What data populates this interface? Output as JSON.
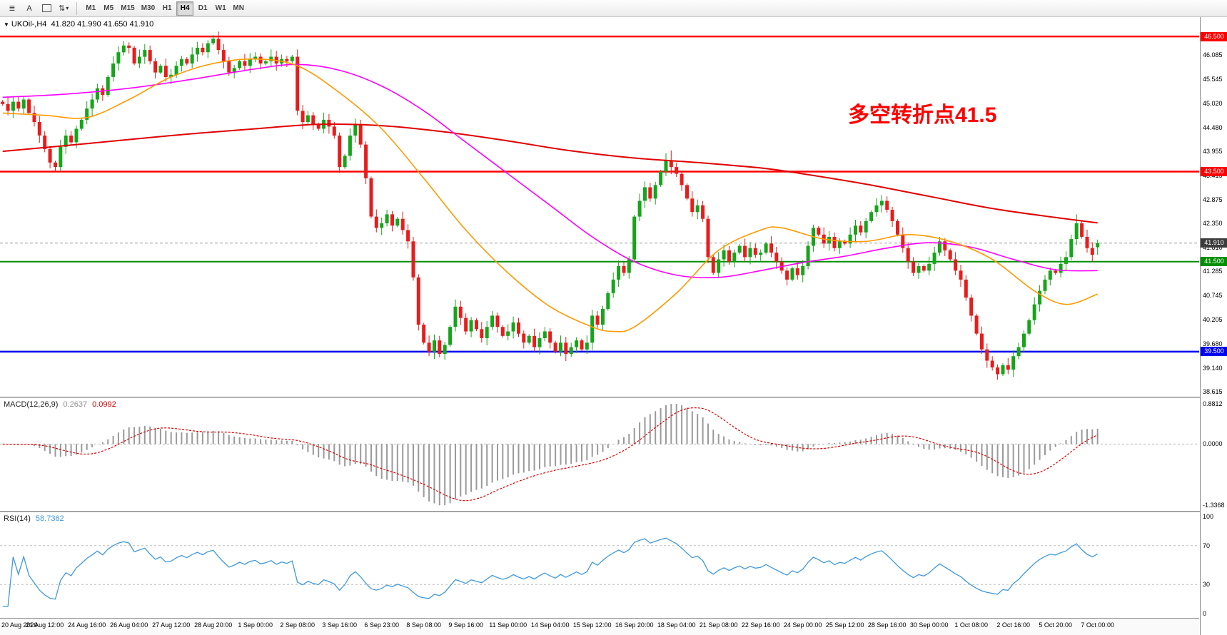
{
  "toolbar": {
    "tool_icons": [
      {
        "name": "charts-tile-icon",
        "glyph": "≣"
      },
      {
        "name": "text-label-tool-icon",
        "glyph": "A"
      },
      {
        "name": "frame-tool-icon",
        "glyph": "rect"
      },
      {
        "name": "arrows-cycle-icon",
        "glyph": "⇅",
        "caret": "▾"
      }
    ],
    "timeframes": [
      "M1",
      "M5",
      "M15",
      "M30",
      "H1",
      "H4",
      "D1",
      "W1",
      "MN"
    ],
    "active_timeframe": "H4"
  },
  "chart": {
    "collapse_arrow": "▼",
    "symbol_period": "UKOil-,H4",
    "ohlc_text": "41.820 41.990 41.650 41.910",
    "annotation": "多空转折点41.5"
  },
  "chart_data": {
    "type": "candlestick",
    "symbol": "UKOil-",
    "timeframe": "H4",
    "last_bar": {
      "open": 41.82,
      "high": 41.99,
      "low": 41.65,
      "close": 41.91
    },
    "price_axis": {
      "max": 46.93,
      "min": 38.5,
      "ticks": [
        46.085,
        45.545,
        45.02,
        44.48,
        43.955,
        43.415,
        42.875,
        42.35,
        41.81,
        41.285,
        40.745,
        40.205,
        39.68,
        39.14,
        38.615
      ]
    },
    "levels": [
      {
        "label": "46.500",
        "price": 46.5,
        "color": "#ff0000",
        "width": 2.5
      },
      {
        "label": "43.500",
        "price": 43.5,
        "color": "#ff0000",
        "width": 2.5
      },
      {
        "label": "41.500",
        "price": 41.5,
        "color": "#008f00",
        "width": 2
      },
      {
        "label": "39.500",
        "price": 39.5,
        "color": "#0000ee",
        "width": 2.5
      }
    ],
    "bid": {
      "label": "41.910",
      "price": 41.91
    },
    "closes": [
      45.0,
      44.85,
      45.05,
      44.9,
      45.1,
      44.8,
      44.6,
      44.3,
      44.0,
      43.7,
      43.6,
      44.05,
      44.3,
      44.15,
      44.45,
      44.65,
      44.9,
      45.1,
      45.35,
      45.2,
      45.6,
      45.9,
      46.15,
      46.3,
      46.25,
      45.9,
      46.05,
      46.2,
      45.95,
      45.7,
      45.85,
      45.6,
      45.65,
      45.85,
      46.0,
      45.9,
      46.1,
      46.25,
      46.15,
      46.35,
      46.45,
      46.2,
      45.95,
      45.7,
      45.8,
      45.95,
      45.85,
      46.0,
      46.05,
      45.9,
      45.95,
      46.05,
      45.9,
      46.0,
      45.95,
      46.05,
      44.85,
      44.6,
      44.75,
      44.55,
      44.45,
      44.65,
      44.5,
      44.3,
      43.6,
      43.85,
      44.3,
      44.55,
      44.1,
      43.35,
      42.5,
      42.25,
      42.35,
      42.55,
      42.3,
      42.45,
      42.2,
      41.95,
      41.15,
      40.1,
      39.7,
      39.5,
      39.75,
      39.45,
      39.65,
      40.05,
      40.5,
      40.25,
      39.95,
      40.2,
      40.0,
      39.8,
      40.05,
      40.3,
      40.05,
      39.85,
      39.95,
      40.15,
      39.9,
      39.7,
      39.85,
      39.6,
      39.8,
      39.95,
      39.7,
      39.5,
      39.7,
      39.45,
      39.6,
      39.75,
      39.55,
      39.7,
      40.3,
      40.1,
      40.45,
      40.8,
      41.1,
      41.4,
      41.25,
      41.55,
      42.5,
      42.85,
      43.15,
      42.9,
      43.2,
      43.5,
      43.75,
      43.6,
      43.45,
      43.2,
      42.9,
      42.6,
      42.75,
      42.45,
      41.6,
      41.25,
      41.55,
      41.75,
      41.5,
      41.7,
      41.85,
      41.6,
      41.8,
      41.65,
      41.7,
      41.9,
      41.7,
      41.5,
      41.3,
      41.1,
      41.35,
      41.2,
      41.4,
      41.85,
      42.25,
      42.1,
      41.9,
      42.05,
      41.8,
      41.95,
      41.9,
      42.1,
      42.3,
      42.15,
      42.4,
      42.6,
      42.75,
      42.85,
      42.65,
      42.4,
      42.1,
      41.8,
      41.5,
      41.25,
      41.4,
      41.3,
      41.45,
      41.7,
      41.95,
      41.75,
      41.55,
      41.3,
      41.1,
      40.7,
      40.3,
      39.9,
      39.55,
      39.3,
      39.15,
      39.0,
      39.2,
      39.1,
      39.4,
      39.6,
      39.9,
      40.2,
      40.55,
      40.85,
      41.1,
      41.3,
      41.25,
      41.45,
      41.6,
      42.0,
      42.35,
      42.05,
      41.8,
      41.65,
      41.91
    ],
    "overrides": {
      "10": {
        "low": 43.5
      },
      "40": {
        "high": 46.53
      },
      "127": {
        "high": 43.97
      },
      "189": {
        "low": 38.88
      },
      "204": {
        "high": 42.55
      },
      "208": {
        "open": 41.82,
        "high": 41.99,
        "low": 41.65,
        "close": 41.91
      }
    },
    "moving_averages": [
      {
        "name": "ma-slow-red",
        "color": "#e00000",
        "width": 2,
        "points": [
          [
            0,
            43.95
          ],
          [
            16,
            44.12
          ],
          [
            32,
            44.3
          ],
          [
            48,
            44.45
          ],
          [
            60,
            44.55
          ],
          [
            72,
            44.52
          ],
          [
            84,
            44.38
          ],
          [
            96,
            44.18
          ],
          [
            108,
            43.96
          ],
          [
            120,
            43.8
          ],
          [
            132,
            43.7
          ],
          [
            144,
            43.58
          ],
          [
            152,
            43.45
          ],
          [
            164,
            43.22
          ],
          [
            176,
            42.95
          ],
          [
            188,
            42.68
          ],
          [
            200,
            42.48
          ],
          [
            208,
            42.36
          ]
        ]
      },
      {
        "name": "ma-mid-magenta",
        "color": "#ff00ff",
        "width": 1.6,
        "points": [
          [
            0,
            45.15
          ],
          [
            12,
            45.22
          ],
          [
            24,
            45.35
          ],
          [
            36,
            45.55
          ],
          [
            48,
            45.78
          ],
          [
            56,
            45.88
          ],
          [
            64,
            45.75
          ],
          [
            72,
            45.4
          ],
          [
            80,
            44.85
          ],
          [
            88,
            44.15
          ],
          [
            96,
            43.45
          ],
          [
            104,
            42.75
          ],
          [
            112,
            42.05
          ],
          [
            120,
            41.5
          ],
          [
            128,
            41.2
          ],
          [
            136,
            41.15
          ],
          [
            144,
            41.3
          ],
          [
            152,
            41.48
          ],
          [
            160,
            41.62
          ],
          [
            168,
            41.8
          ],
          [
            176,
            41.92
          ],
          [
            184,
            41.82
          ],
          [
            192,
            41.55
          ],
          [
            200,
            41.32
          ],
          [
            208,
            41.3
          ]
        ]
      },
      {
        "name": "ma-fast-orange",
        "color": "#ff9900",
        "width": 1.6,
        "points": [
          [
            0,
            44.8
          ],
          [
            8,
            44.75
          ],
          [
            16,
            44.7
          ],
          [
            24,
            45.1
          ],
          [
            32,
            45.6
          ],
          [
            40,
            45.9
          ],
          [
            48,
            46.0
          ],
          [
            56,
            45.85
          ],
          [
            64,
            45.25
          ],
          [
            72,
            44.45
          ],
          [
            80,
            43.35
          ],
          [
            88,
            42.2
          ],
          [
            96,
            41.25
          ],
          [
            104,
            40.5
          ],
          [
            112,
            40.05
          ],
          [
            116,
            39.95
          ],
          [
            120,
            40.05
          ],
          [
            128,
            40.8
          ],
          [
            136,
            41.75
          ],
          [
            144,
            42.2
          ],
          [
            148,
            42.25
          ],
          [
            156,
            42.0
          ],
          [
            164,
            41.95
          ],
          [
            172,
            42.1
          ],
          [
            180,
            41.95
          ],
          [
            188,
            41.55
          ],
          [
            196,
            40.85
          ],
          [
            202,
            40.55
          ],
          [
            208,
            40.78
          ]
        ]
      }
    ],
    "x_labels": [
      {
        "bar": 0,
        "text": "20 Aug 2020"
      },
      {
        "bar": 8,
        "text": "21 Aug 12:00"
      },
      {
        "bar": 16,
        "text": "24 Aug 16:00"
      },
      {
        "bar": 24,
        "text": "26 Aug 04:00"
      },
      {
        "bar": 32,
        "text": "27 Aug 12:00"
      },
      {
        "bar": 40,
        "text": "28 Aug 20:00"
      },
      {
        "bar": 48,
        "text": "1 Sep 00:00"
      },
      {
        "bar": 56,
        "text": "2 Sep 08:00"
      },
      {
        "bar": 64,
        "text": "3 Sep 16:00"
      },
      {
        "bar": 72,
        "text": "6 Sep 23:00"
      },
      {
        "bar": 80,
        "text": "8 Sep 08:00"
      },
      {
        "bar": 88,
        "text": "9 Sep 16:00"
      },
      {
        "bar": 96,
        "text": "11 Sep 00:00"
      },
      {
        "bar": 104,
        "text": "14 Sep 04:00"
      },
      {
        "bar": 112,
        "text": "15 Sep 12:00"
      },
      {
        "bar": 120,
        "text": "16 Sep 20:00"
      },
      {
        "bar": 128,
        "text": "18 Sep 04:00"
      },
      {
        "bar": 136,
        "text": "21 Sep 08:00"
      },
      {
        "bar": 144,
        "text": "22 Sep 16:00"
      },
      {
        "bar": 152,
        "text": "24 Sep 00:00"
      },
      {
        "bar": 160,
        "text": "25 Sep 12:00"
      },
      {
        "bar": 168,
        "text": "28 Sep 16:00"
      },
      {
        "bar": 176,
        "text": "30 Sep 00:00"
      },
      {
        "bar": 184,
        "text": "1 Oct 08:00"
      },
      {
        "bar": 192,
        "text": "2 Oct 16:00"
      },
      {
        "bar": 200,
        "text": "5 Oct 20:00"
      },
      {
        "bar": 208,
        "text": "7 Oct 00:00"
      }
    ],
    "indicators": {
      "macd": {
        "label": "MACD(12,26,9)",
        "value_main": "0.2637",
        "value_signal": "0.0992",
        "params": [
          12,
          26,
          9
        ],
        "axis": [
          0.8812,
          0.0,
          -1.3368
        ]
      },
      "rsi": {
        "label": "RSI(14)",
        "value": "58.7362",
        "period": 14,
        "levels": [
          70,
          30
        ],
        "axis": [
          100,
          70,
          30,
          0
        ]
      }
    },
    "colors": {
      "up": "#16a51a",
      "down": "#e81c1c",
      "macd_hist": "#9a9a9a",
      "macd_signal": "#e00000",
      "rsi": "#3f99dd",
      "annotation": "#ff0000",
      "bid_tag": "#3c3c3c"
    }
  }
}
